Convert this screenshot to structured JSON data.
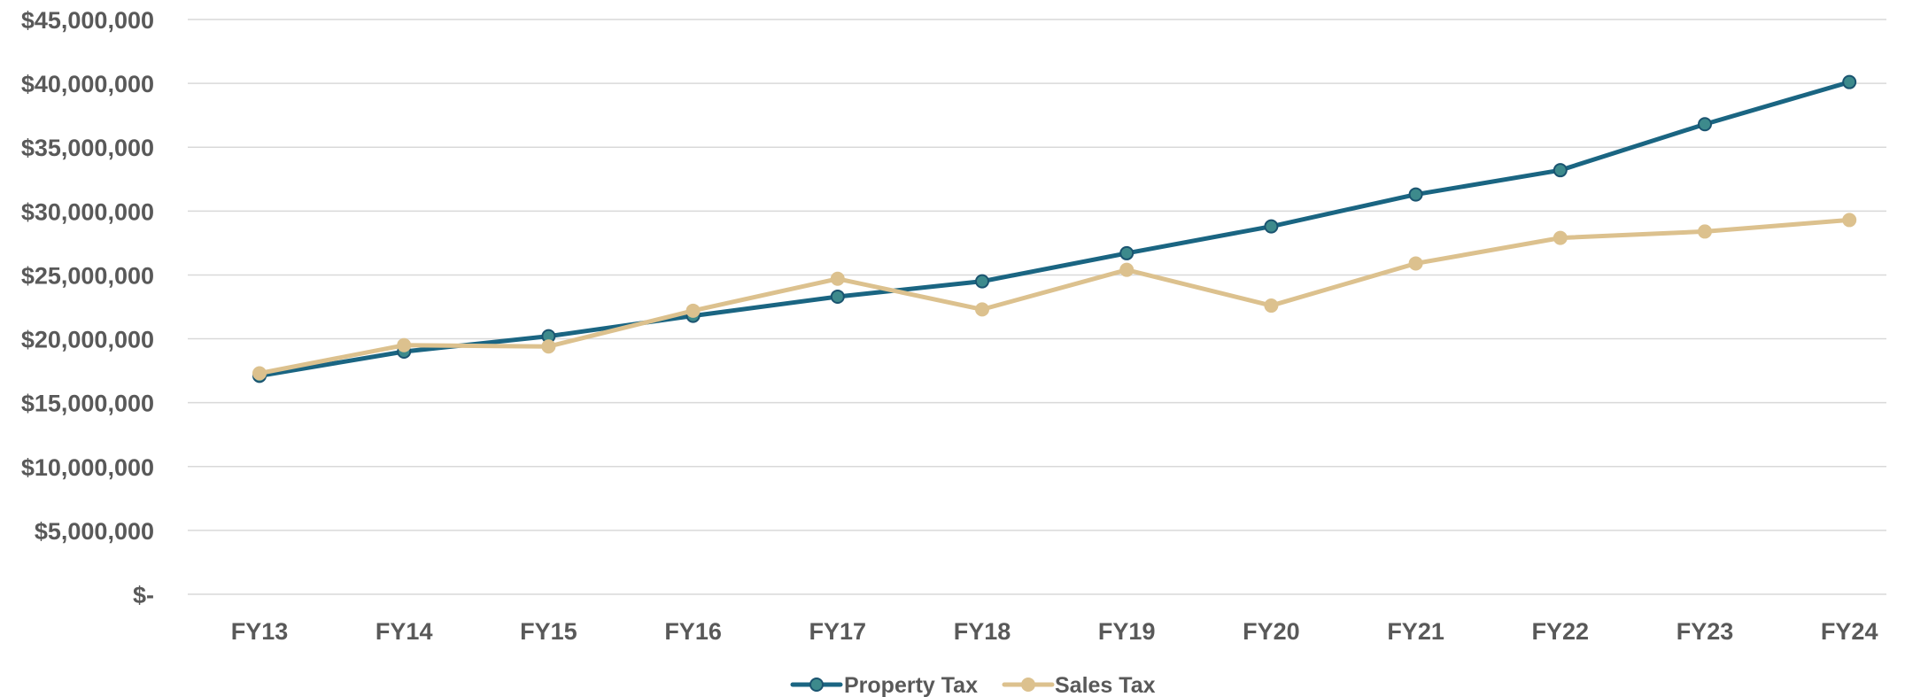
{
  "chart_data": {
    "type": "line",
    "title": "",
    "xlabel": "",
    "ylabel": "",
    "categories": [
      "FY13",
      "FY14",
      "FY15",
      "FY16",
      "FY17",
      "FY18",
      "FY19",
      "FY20",
      "FY21",
      "FY22",
      "FY23",
      "FY24"
    ],
    "ylim": [
      0,
      45000000
    ],
    "ytick_values": [
      0,
      5000000,
      10000000,
      15000000,
      20000000,
      25000000,
      30000000,
      35000000,
      40000000,
      45000000
    ],
    "ytick_labels": [
      "$-",
      "$5,000,000",
      "$10,000,000",
      "$15,000,000",
      "$20,000,000",
      "$25,000,000",
      "$30,000,000",
      "$35,000,000",
      "$40,000,000",
      "$45,000,000"
    ],
    "grid": true,
    "legend_position": "bottom-center",
    "series": [
      {
        "name": "Property Tax",
        "color": "#1a6582",
        "marker_color": "#3d8a8c",
        "values": [
          17100000,
          19000000,
          20200000,
          21800000,
          23300000,
          24500000,
          26700000,
          28800000,
          31300000,
          33200000,
          36800000,
          40100000
        ]
      },
      {
        "name": "Sales Tax",
        "color": "#dcc18e",
        "marker_color": "#dcc18e",
        "values": [
          17300000,
          19500000,
          19400000,
          22200000,
          24700000,
          22300000,
          25400000,
          22600000,
          25900000,
          27900000,
          28400000,
          29300000
        ]
      }
    ]
  }
}
